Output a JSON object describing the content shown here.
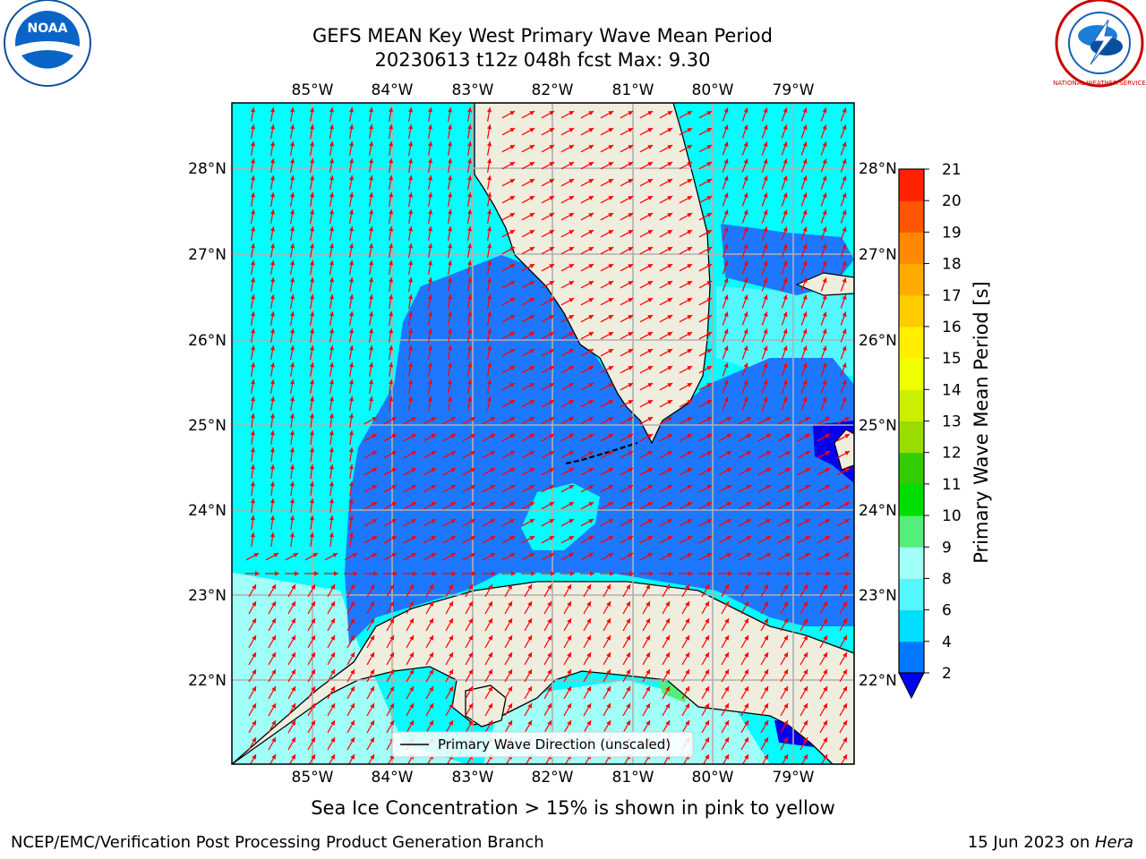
{
  "header": {
    "title_line1": "GEFS MEAN Key West Primary Wave Mean Period",
    "title_line2": "20230613 t12z 048h fcst   Max: 9.30"
  },
  "logos": {
    "left": {
      "name": "noaa-logo",
      "text": "NOAA"
    },
    "right": {
      "name": "nws-logo",
      "text": "NATIONAL WEATHER SERVICE"
    }
  },
  "map": {
    "lon_ticks": [
      "85°W",
      "84°W",
      "83°W",
      "82°W",
      "81°W",
      "80°W",
      "79°W"
    ],
    "lat_ticks": [
      "28°N",
      "27°N",
      "26°N",
      "25°N",
      "24°N",
      "23°N",
      "22°N"
    ],
    "legend_label": "Primary Wave Direction (unscaled)",
    "arrow_color": "#ff0000",
    "land_color": "#efedde",
    "grid_color": "#b0b0b0"
  },
  "colorbar": {
    "label": "Primary Wave Mean Period [s]",
    "tick_labels": [
      "2",
      "4",
      "6",
      "8",
      "9",
      "10",
      "11",
      "12",
      "13",
      "14",
      "15",
      "16",
      "17",
      "18",
      "19",
      "20",
      "21"
    ],
    "colors": [
      "#0078ff",
      "#00ddff",
      "#55f7ff",
      "#a0fff7",
      "#55ee7a",
      "#00dd00",
      "#33cc00",
      "#99dd00",
      "#ccee00",
      "#eeff00",
      "#ffee00",
      "#ffcc00",
      "#ffaa00",
      "#ff8800",
      "#ff5500",
      "#ff2200",
      "#ff0000"
    ],
    "under_color": "#0000ee"
  },
  "notes": {
    "sea_ice": "Sea Ice Concentration > 15% is shown in pink to yellow"
  },
  "footer": {
    "left": "NCEP/EMC/Verification Post Processing Product Generation Branch",
    "date_prefix": "15 Jun 2023 on ",
    "machine": "Hera"
  }
}
